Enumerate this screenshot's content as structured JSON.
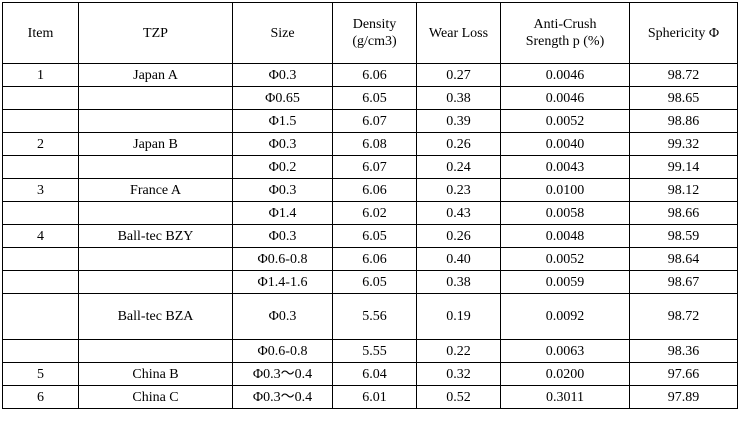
{
  "headers": {
    "item": "Item",
    "tzp": "TZP",
    "size": "Size",
    "density_line1": "Density",
    "density_line2": "(g/cm3)",
    "wear_loss": "Wear Loss",
    "anti_crush_line1": "Anti-Crush",
    "anti_crush_line2": "Srength p (%)",
    "sphericity": "Sphericity Φ"
  },
  "rows": [
    {
      "item": "1",
      "tzp": "Japan A",
      "size": "Φ0.3",
      "density": "6.06",
      "wear_loss": "0.27",
      "anti_crush": "0.0046",
      "sphericity": "98.72"
    },
    {
      "item": "",
      "tzp": "",
      "size": "Φ0.65",
      "density": "6.05",
      "wear_loss": "0.38",
      "anti_crush": "0.0046",
      "sphericity": "98.65"
    },
    {
      "item": "",
      "tzp": "",
      "size": "Φ1.5",
      "density": "6.07",
      "wear_loss": "0.39",
      "anti_crush": "0.0052",
      "sphericity": "98.86"
    },
    {
      "item": "2",
      "tzp": "Japan B",
      "size": "Φ0.3",
      "density": "6.08",
      "wear_loss": "0.26",
      "anti_crush": "0.0040",
      "sphericity": "99.32"
    },
    {
      "item": "",
      "tzp": "",
      "size": "Φ0.2",
      "density": "6.07",
      "wear_loss": "0.24",
      "anti_crush": "0.0043",
      "sphericity": "99.14"
    },
    {
      "item": "3",
      "tzp": "France A",
      "size": "Φ0.3",
      "density": "6.06",
      "wear_loss": "0.23",
      "anti_crush": "0.0100",
      "sphericity": "98.12"
    },
    {
      "item": "",
      "tzp": "",
      "size": "Φ1.4",
      "density": "6.02",
      "wear_loss": "0.43",
      "anti_crush": "0.0058",
      "sphericity": "98.66"
    },
    {
      "item": "4",
      "tzp": "Ball-tec BZY",
      "size": "Φ0.3",
      "density": "6.05",
      "wear_loss": "0.26",
      "anti_crush": "0.0048",
      "sphericity": "98.59"
    },
    {
      "item": "",
      "tzp": "",
      "size": "Φ0.6-0.8",
      "density": "6.06",
      "wear_loss": "0.40",
      "anti_crush": "0.0052",
      "sphericity": "98.64"
    },
    {
      "item": "",
      "tzp": "",
      "size": "Φ1.4-1.6",
      "density": "6.05",
      "wear_loss": "0.38",
      "anti_crush": "0.0059",
      "sphericity": "98.67"
    },
    {
      "item": "",
      "tzp": "Ball-tec BZA",
      "size": "Φ0.3",
      "density": "5.56",
      "wear_loss": "0.19",
      "anti_crush": "0.0092",
      "sphericity": "98.72"
    },
    {
      "item": "",
      "tzp": "",
      "size": "Φ0.6-0.8",
      "density": "5.55",
      "wear_loss": "0.22",
      "anti_crush": "0.0063",
      "sphericity": "98.36"
    },
    {
      "item": "5",
      "tzp": "China B",
      "size": "Φ0.3～0.4",
      "density": "6.04",
      "wear_loss": "0.32",
      "anti_crush": "0.0200",
      "sphericity": "97.66"
    },
    {
      "item": "6",
      "tzp": "China C",
      "size": "Φ0.3～0.4",
      "density": "6.01",
      "wear_loss": "0.52",
      "anti_crush": "0.3011",
      "sphericity": "97.89"
    }
  ]
}
